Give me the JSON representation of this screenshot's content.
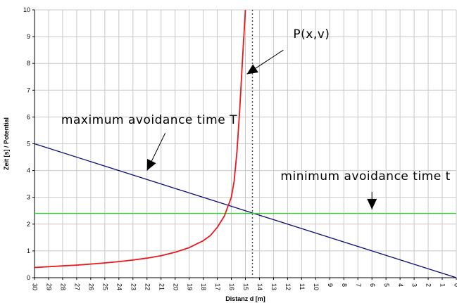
{
  "chart_data": {
    "type": "line",
    "xlabel": "Distanz d [m]",
    "ylabel": "Zeit [s] / Potential",
    "xlim": [
      30,
      0
    ],
    "ylim": [
      0,
      10
    ],
    "x_reversed": true,
    "x_ticks": [
      30,
      29,
      28,
      27,
      26,
      25,
      24,
      23,
      22,
      21,
      20,
      19,
      18,
      17,
      16,
      15,
      14,
      13,
      12,
      11,
      10,
      9,
      8,
      7,
      6,
      5,
      4,
      3,
      2,
      1,
      0
    ],
    "y_ticks": [
      0,
      1,
      2,
      3,
      4,
      5,
      6,
      7,
      8,
      9,
      10
    ],
    "grid": true,
    "series": [
      {
        "key": "potential",
        "color": "#e8171c",
        "points": [
          [
            30,
            0.38
          ],
          [
            29,
            0.41
          ],
          [
            28,
            0.44
          ],
          [
            27,
            0.47
          ],
          [
            26,
            0.51
          ],
          [
            25,
            0.55
          ],
          [
            24,
            0.6
          ],
          [
            23,
            0.66
          ],
          [
            22,
            0.73
          ],
          [
            21,
            0.82
          ],
          [
            20,
            0.95
          ],
          [
            19,
            1.12
          ],
          [
            18,
            1.38
          ],
          [
            17.5,
            1.57
          ],
          [
            17,
            1.88
          ],
          [
            16.5,
            2.3
          ],
          [
            16,
            3.0
          ],
          [
            15.8,
            3.6
          ],
          [
            15.6,
            4.7
          ],
          [
            15.4,
            6.3
          ],
          [
            15.2,
            8.2
          ],
          [
            15.0,
            10.0
          ]
        ]
      },
      {
        "key": "max_avoidance",
        "color": "#0a0a78",
        "points": [
          [
            30,
            5.0
          ],
          [
            0,
            0.0
          ]
        ]
      },
      {
        "key": "min_avoidance",
        "color": "#1ee11e",
        "points": [
          [
            30,
            2.4
          ],
          [
            0,
            2.4
          ]
        ]
      }
    ],
    "vline": {
      "x": 14.5,
      "color": "#444444",
      "style": "dotted"
    },
    "annotations": [
      {
        "key": "p",
        "text": "P(x,v)",
        "text_pos": [
          11.6,
          8.95
        ],
        "arrow_from": [
          12.3,
          8.5
        ],
        "arrow_to": [
          14.9,
          7.6
        ]
      },
      {
        "key": "max",
        "text": "maximum avoidance time T",
        "text_pos": [
          28.1,
          5.75
        ],
        "arrow_from": [
          20.7,
          5.4
        ],
        "arrow_to": [
          22.0,
          4.0
        ]
      },
      {
        "key": "min",
        "text": "minimum avoidance time t",
        "text_pos": [
          12.5,
          3.65
        ],
        "arrow_from": [
          6.0,
          3.2
        ],
        "arrow_to": [
          6.0,
          2.55
        ]
      }
    ]
  }
}
